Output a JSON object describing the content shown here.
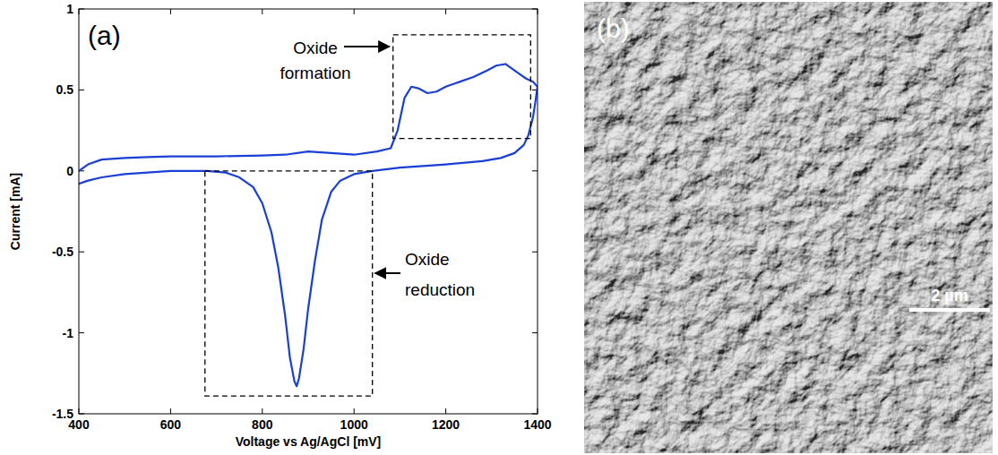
{
  "chart_data": {
    "type": "line",
    "panel_label": "(a)",
    "x_label": "Voltage vs Ag/AgCl [mV]",
    "y_label": "Current [mA]",
    "x": [
      400,
      420,
      450,
      500,
      550,
      600,
      700,
      800,
      850,
      900,
      950,
      1000,
      1050,
      1080,
      1095,
      1110,
      1125,
      1140,
      1160,
      1180,
      1200,
      1230,
      1260,
      1290,
      1310,
      1330,
      1345,
      1360,
      1375,
      1390,
      1400,
      1395,
      1390,
      1380,
      1370,
      1350,
      1320,
      1280,
      1200,
      1100,
      1040,
      1000,
      970,
      950,
      930,
      915,
      900,
      890,
      880,
      875,
      870,
      860,
      850,
      835,
      820,
      800,
      780,
      750,
      720,
      680,
      600,
      500,
      450,
      420,
      400
    ],
    "values": [
      0.0,
      0.04,
      0.07,
      0.08,
      0.085,
      0.09,
      0.09,
      0.095,
      0.1,
      0.12,
      0.11,
      0.1,
      0.12,
      0.14,
      0.25,
      0.45,
      0.52,
      0.51,
      0.48,
      0.49,
      0.52,
      0.55,
      0.58,
      0.62,
      0.65,
      0.66,
      0.63,
      0.6,
      0.57,
      0.55,
      0.52,
      0.42,
      0.33,
      0.22,
      0.16,
      0.11,
      0.08,
      0.06,
      0.04,
      0.02,
      0.0,
      -0.02,
      -0.06,
      -0.13,
      -0.3,
      -0.55,
      -0.85,
      -1.1,
      -1.28,
      -1.33,
      -1.3,
      -1.15,
      -0.9,
      -0.6,
      -0.38,
      -0.2,
      -0.1,
      -0.04,
      -0.01,
      0.0,
      0.0,
      -0.02,
      -0.04,
      -0.06,
      -0.08
    ],
    "color": "#1a3fd6",
    "xlim": [
      400,
      1400
    ],
    "ylim": [
      -1.5,
      1
    ],
    "xticks": [
      400,
      600,
      800,
      1000,
      1200,
      1400
    ],
    "yticks": [
      -1.5,
      -1,
      -0.5,
      0,
      0.5,
      1
    ],
    "grid": false,
    "annotations": [
      {
        "text": "Oxide formation",
        "x_range": [
          1085,
          1385
        ],
        "y_range": [
          0.2,
          0.84
        ]
      },
      {
        "text": "Oxide reduction",
        "x_range": [
          675,
          1040
        ],
        "y_range": [
          -1.39,
          0.0
        ]
      }
    ]
  },
  "image": {
    "panel_label": "(b)",
    "scale_bar_label": "2 µm"
  }
}
